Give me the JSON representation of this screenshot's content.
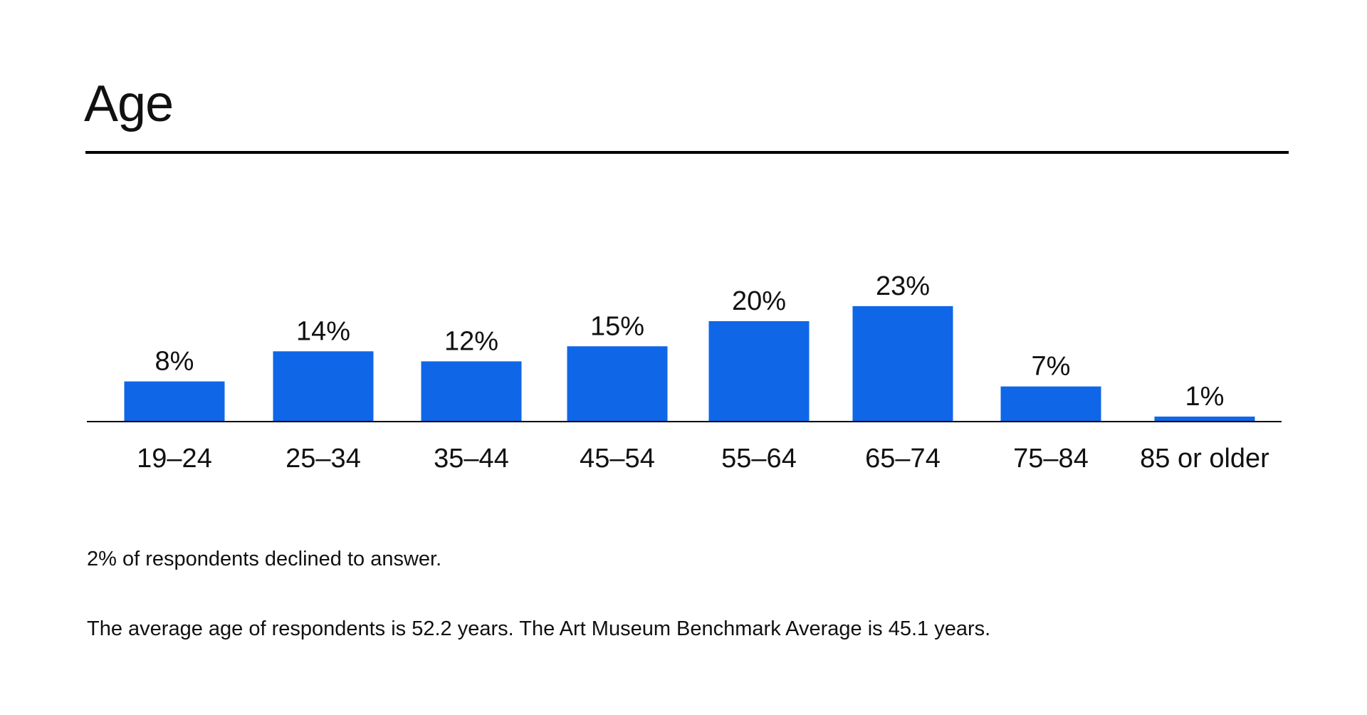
{
  "page": {
    "title": "Age",
    "notes": [
      "2% of respondents declined to answer.",
      "The average age of respondents is 52.2 years. The Art Museum Benchmark Average is 45.1 years."
    ]
  },
  "colors": {
    "bar": "#0f67e8",
    "axis": "#000000",
    "text": "#111111"
  },
  "chart_data": {
    "type": "bar",
    "title": "Age",
    "categories": [
      "19–24",
      "25–34",
      "35–44",
      "45–54",
      "55–64",
      "65–74",
      "75–84",
      "85 or older"
    ],
    "values": [
      8,
      14,
      12,
      15,
      20,
      23,
      7,
      1
    ],
    "value_labels": [
      "8%",
      "14%",
      "12%",
      "15%",
      "20%",
      "23%",
      "7%",
      "1%"
    ],
    "unit": "%",
    "xlabel": "",
    "ylabel": "",
    "ylim": [
      0,
      25
    ],
    "grid": false,
    "legend": "none"
  }
}
